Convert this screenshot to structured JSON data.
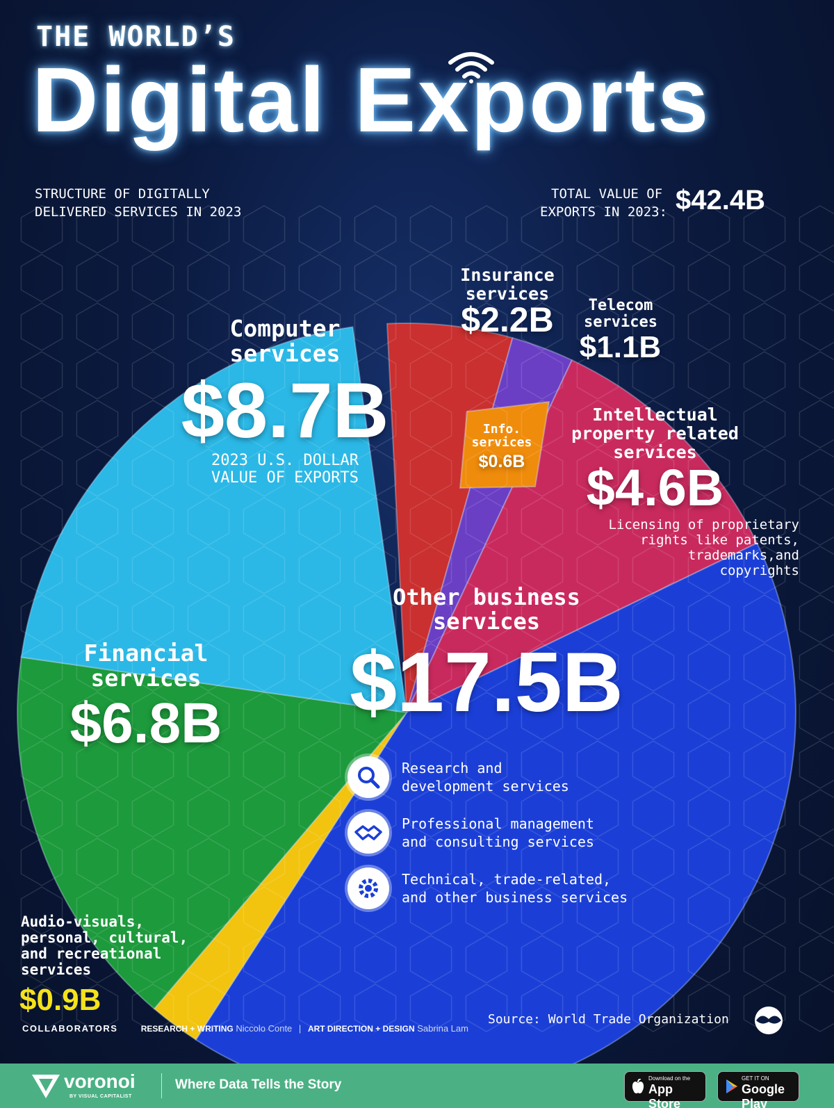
{
  "header": {
    "title_top": "THE WORLD’S",
    "title_main": "Digital Exports",
    "subtitle_line1": "STRUCTURE OF DIGITALLY",
    "subtitle_line2": "DELIVERED SERVICES IN 2023",
    "total_label_line1": "TOTAL VALUE OF",
    "total_label_line2": "EXPORTS IN 2023:",
    "total_value": "$42.4B",
    "title_icon": "wifi-icon"
  },
  "chart_data": {
    "type": "pie",
    "unit": "billion USD",
    "total": 42.4,
    "slices": [
      {
        "label_line1": "Computer",
        "label_line2": "services",
        "value": 8.7,
        "value_label": "$8.7B",
        "color": "#2bb8e6"
      },
      {
        "label_line1": "Insurance",
        "label_line2": "services",
        "value": 2.2,
        "value_label": "$2.2B",
        "color": "#c9302f"
      },
      {
        "label_line1": "Telecom",
        "label_line2": "services",
        "value": 1.1,
        "value_label": "$1.1B",
        "color": "#6a3fc4"
      },
      {
        "label_line1": "Info.",
        "label_line2": "services",
        "value": 0.6,
        "value_label": "$0.6B",
        "color": "#f08c0c"
      },
      {
        "label_line1": "Intellectual",
        "label_line2": "property related",
        "label_line3": "services",
        "value": 4.6,
        "value_label": "$4.6B",
        "color": "#c92a5e"
      },
      {
        "label_line1": "Other business",
        "label_line2": "services",
        "value": 17.5,
        "value_label": "$17.5B",
        "color": "#1b3fd6"
      },
      {
        "label_line1": "Audio-visuals,",
        "label_line2": "personal, cultural,",
        "label_line3": "and recreational",
        "label_line4": "services",
        "value": 0.9,
        "value_label": "$0.9B",
        "color": "#f2c40f"
      },
      {
        "label_line1": "Financial",
        "label_line2": "services",
        "value": 6.8,
        "value_label": "$6.8B",
        "color": "#1d9a3c"
      }
    ]
  },
  "annotations": {
    "computer_note_line1": "2023 U.S. DOLLAR",
    "computer_note_line2": "VALUE OF EXPORTS",
    "ip_note_line1": "Licensing of proprietary",
    "ip_note_line2": "rights like patents,",
    "ip_note_line3": "trademarks,and",
    "ip_note_line4": "copyrights"
  },
  "other_business_items": [
    {
      "icon": "search-icon",
      "text": "Research and\ndevelopment services"
    },
    {
      "icon": "handshake-icon",
      "text": "Professional management\nand consulting services"
    },
    {
      "icon": "gear-icon",
      "text": "Technical, trade-related,\nand other business services"
    }
  ],
  "source": {
    "text": "Source: World Trade Organization",
    "icon": "visual-capitalist-logo-icon"
  },
  "credits": {
    "collaborators": "COLLABORATORS",
    "research_label": "RESEARCH + WRITING",
    "research_name": "Niccolo Conte",
    "separator": "|",
    "design_label": "ART DIRECTION + DESIGN",
    "design_name": "Sabrina Lam"
  },
  "footer": {
    "brand": "voronoi",
    "brand_sub": "BY VISUAL CAPITALIST",
    "tagline": "Where Data Tells the Story",
    "appstore_small": "Download on the",
    "appstore_big": "App Store",
    "googleplay_small": "GET IT ON",
    "googleplay_big": "Google Play",
    "colors": {
      "bar": "#4bb185"
    }
  }
}
